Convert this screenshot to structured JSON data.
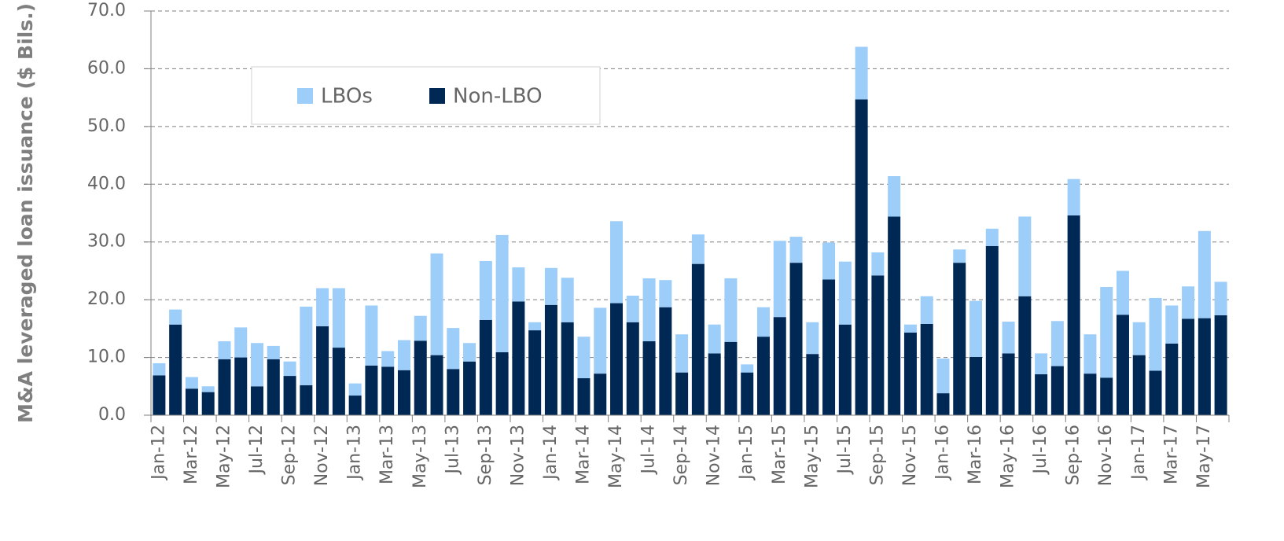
{
  "chart_data": {
    "type": "stacked_bar",
    "y_label": "M&A leveraged loan issuance ($ Bils.)",
    "categories": [
      "Jan-12",
      null,
      "Mar-12",
      null,
      "May-12",
      null,
      "Jul-12",
      null,
      "Sep-12",
      null,
      "Nov-12",
      null,
      "Jan-13",
      null,
      "Mar-13",
      null,
      "May-13",
      null,
      "Jul-13",
      null,
      "Sep-13",
      null,
      "Nov-13",
      null,
      "Jan-14",
      null,
      "Mar-14",
      null,
      "May-14",
      null,
      "Jul-14",
      null,
      "Sep-14",
      null,
      "Nov-14",
      null,
      "Jan-15",
      null,
      "Mar-15",
      null,
      "May-15",
      null,
      "Jul-15",
      null,
      "Sep-15",
      null,
      "Nov-15",
      null,
      "Jan-16",
      null,
      "Mar-16",
      null,
      "May-16",
      null,
      "Jul-16",
      null,
      "Sep-16",
      null,
      "Nov-16",
      null,
      "Jan-17",
      null,
      "Mar-17",
      null,
      "May-17",
      null
    ],
    "series": [
      {
        "name": "LBOs",
        "color": "#9dcdf9",
        "values": [
          2.1,
          2.6,
          2.0,
          1.0,
          3.1,
          5.2,
          7.5,
          2.3,
          2.5,
          13.6,
          6.6,
          10.3,
          2.1,
          10.4,
          2.7,
          5.2,
          4.3,
          17.6,
          7.1,
          3.2,
          10.2,
          20.3,
          5.9,
          1.4,
          6.4,
          7.7,
          7.2,
          11.4,
          14.2,
          4.6,
          10.9,
          4.7,
          6.6,
          5.1,
          5.0,
          11.0,
          1.4,
          5.1,
          13.2,
          4.5,
          5.5,
          6.4,
          10.9,
          9.1,
          4.0,
          7.0,
          1.4,
          4.8,
          6.0,
          2.3,
          9.7,
          3.0,
          5.5,
          13.8,
          3.6,
          7.8,
          6.3,
          6.8,
          15.7,
          7.6,
          5.7,
          12.6,
          6.6,
          5.6,
          15.1,
          5.8
        ]
      },
      {
        "name": "Non-LBO",
        "color": "#002855",
        "values": [
          6.9,
          15.7,
          4.6,
          4.0,
          9.7,
          10.0,
          5.0,
          9.7,
          6.8,
          5.2,
          15.4,
          11.7,
          3.4,
          8.6,
          8.4,
          7.8,
          12.9,
          10.4,
          8.0,
          9.3,
          16.5,
          10.9,
          19.7,
          14.7,
          19.1,
          16.1,
          6.4,
          7.2,
          19.4,
          16.1,
          12.8,
          18.7,
          7.4,
          26.2,
          10.7,
          12.7,
          7.4,
          13.6,
          17.0,
          26.4,
          10.6,
          23.5,
          15.7,
          54.7,
          24.2,
          34.4,
          14.3,
          15.8,
          3.8,
          26.4,
          10.1,
          29.3,
          10.7,
          20.6,
          7.1,
          8.5,
          34.6,
          7.2,
          6.5,
          17.4,
          10.4,
          7.7,
          12.4,
          16.7,
          16.8,
          17.3
        ]
      }
    ],
    "ylim": [
      0,
      70
    ],
    "yticks": [
      {
        "value": 0,
        "label": "0.0"
      },
      {
        "value": 10,
        "label": "10.0"
      },
      {
        "value": 20,
        "label": "20.0"
      },
      {
        "value": 30,
        "label": "30.0"
      },
      {
        "value": 40,
        "label": "40.0"
      },
      {
        "value": 50,
        "label": "50.0"
      },
      {
        "value": 60,
        "label": "60.0"
      },
      {
        "value": 70,
        "label": "70.0"
      }
    ],
    "grid": true,
    "legend": "upper left"
  }
}
